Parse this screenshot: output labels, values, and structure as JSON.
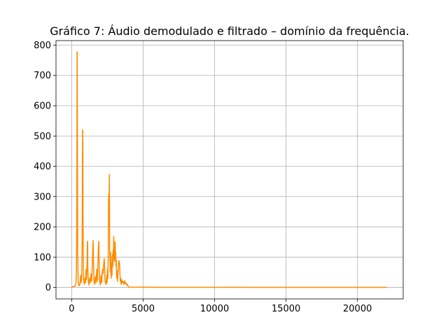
{
  "chart_data": {
    "type": "line",
    "title": "Gráfico 7: Áudio demodulado e filtrado – domínio da frequência.",
    "xlabel": "",
    "ylabel": "",
    "xlim": [
      -1100,
      23200
    ],
    "ylim": [
      -38,
      815
    ],
    "grid": true,
    "line_color": "#ff8c00",
    "x_ticks": [
      0,
      5000,
      10000,
      15000,
      20000
    ],
    "y_ticks": [
      0,
      100,
      200,
      300,
      400,
      500,
      600,
      700,
      800
    ],
    "series": [
      {
        "points": [
          [
            0,
            2
          ],
          [
            150,
            3
          ],
          [
            250,
            5
          ],
          [
            300,
            15
          ],
          [
            330,
            60
          ],
          [
            350,
            200
          ],
          [
            365,
            500
          ],
          [
            375,
            778
          ],
          [
            385,
            775
          ],
          [
            400,
            420
          ],
          [
            420,
            120
          ],
          [
            450,
            20
          ],
          [
            500,
            5
          ],
          [
            560,
            8
          ],
          [
            600,
            25
          ],
          [
            630,
            40
          ],
          [
            660,
            15
          ],
          [
            700,
            30
          ],
          [
            730,
            150
          ],
          [
            750,
            420
          ],
          [
            765,
            520
          ],
          [
            775,
            518
          ],
          [
            790,
            250
          ],
          [
            810,
            80
          ],
          [
            840,
            25
          ],
          [
            880,
            10
          ],
          [
            920,
            30
          ],
          [
            960,
            15
          ],
          [
            1000,
            60
          ],
          [
            1020,
            25
          ],
          [
            1050,
            40
          ],
          [
            1080,
            90
          ],
          [
            1100,
            152
          ],
          [
            1115,
            150
          ],
          [
            1130,
            60
          ],
          [
            1160,
            20
          ],
          [
            1200,
            8
          ],
          [
            1250,
            30
          ],
          [
            1300,
            15
          ],
          [
            1350,
            45
          ],
          [
            1400,
            20
          ],
          [
            1450,
            90
          ],
          [
            1480,
            140
          ],
          [
            1500,
            155
          ],
          [
            1520,
            90
          ],
          [
            1550,
            25
          ],
          [
            1600,
            10
          ],
          [
            1650,
            35
          ],
          [
            1700,
            15
          ],
          [
            1750,
            60
          ],
          [
            1800,
            20
          ],
          [
            1850,
            110
          ],
          [
            1880,
            145
          ],
          [
            1900,
            152
          ],
          [
            1920,
            90
          ],
          [
            1950,
            20
          ],
          [
            2000,
            8
          ],
          [
            2050,
            40
          ],
          [
            2100,
            15
          ],
          [
            2150,
            60
          ],
          [
            2200,
            45
          ],
          [
            2250,
            85
          ],
          [
            2280,
            95
          ],
          [
            2300,
            70
          ],
          [
            2330,
            20
          ],
          [
            2400,
            10
          ],
          [
            2450,
            40
          ],
          [
            2480,
            15
          ],
          [
            2500,
            60
          ],
          [
            2530,
            30
          ],
          [
            2560,
            120
          ],
          [
            2580,
            285
          ],
          [
            2600,
            310
          ],
          [
            2620,
            200
          ],
          [
            2630,
            373
          ],
          [
            2645,
            280
          ],
          [
            2660,
            120
          ],
          [
            2680,
            80
          ],
          [
            2700,
            50
          ],
          [
            2720,
            115
          ],
          [
            2740,
            90
          ],
          [
            2760,
            30
          ],
          [
            2780,
            60
          ],
          [
            2800,
            80
          ],
          [
            2820,
            40
          ],
          [
            2840,
            100
          ],
          [
            2860,
            110
          ],
          [
            2880,
            70
          ],
          [
            2900,
            125
          ],
          [
            2920,
            100
          ],
          [
            2940,
            168
          ],
          [
            2960,
            140
          ],
          [
            2980,
            85
          ],
          [
            3000,
            120
          ],
          [
            3020,
            90
          ],
          [
            3040,
            150
          ],
          [
            3060,
            110
          ],
          [
            3080,
            115
          ],
          [
            3100,
            70
          ],
          [
            3120,
            90
          ],
          [
            3140,
            40
          ],
          [
            3160,
            30
          ],
          [
            3180,
            55
          ],
          [
            3200,
            20
          ],
          [
            3230,
            45
          ],
          [
            3260,
            60
          ],
          [
            3290,
            85
          ],
          [
            3310,
            88
          ],
          [
            3330,
            75
          ],
          [
            3350,
            80
          ],
          [
            3380,
            40
          ],
          [
            3400,
            20
          ],
          [
            3430,
            30
          ],
          [
            3460,
            10
          ],
          [
            3500,
            25
          ],
          [
            3530,
            15
          ],
          [
            3560,
            18
          ],
          [
            3600,
            20
          ],
          [
            3650,
            10
          ],
          [
            3700,
            22
          ],
          [
            3750,
            12
          ],
          [
            3800,
            15
          ],
          [
            3850,
            8
          ],
          [
            3900,
            10
          ],
          [
            3950,
            3
          ],
          [
            4000,
            1
          ],
          [
            6000,
            0.5
          ],
          [
            10000,
            0.3
          ],
          [
            15000,
            0.2
          ],
          [
            20000,
            0.2
          ],
          [
            22050,
            0.2
          ]
        ]
      }
    ]
  }
}
